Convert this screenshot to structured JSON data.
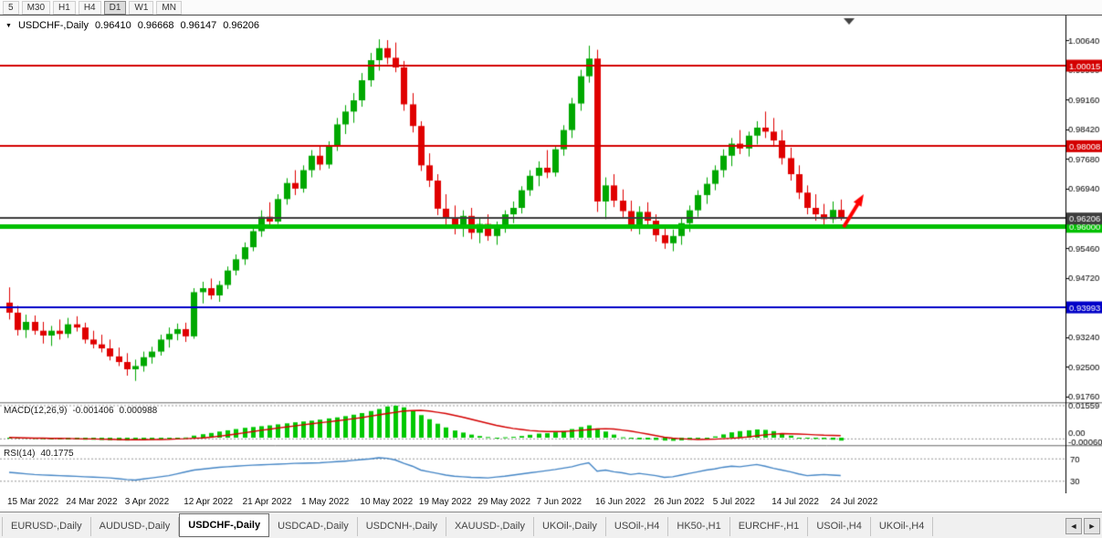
{
  "toolbar": {
    "periods": [
      "5",
      "M30",
      "H1",
      "H4",
      "D1",
      "W1",
      "MN"
    ],
    "active_index": 4
  },
  "icons": {
    "chart_menu": "▼",
    "tabs_scroll_left": "◄",
    "tabs_scroll_right": "►"
  },
  "chart_data": {
    "type": "candlestick",
    "symbol_label": "USDCHF-,Daily",
    "ohlc": {
      "open": "0.96410",
      "high": "0.96668",
      "low": "0.96147",
      "close": "0.96206"
    },
    "bull_color": "#00A800",
    "bear_color": "#E00000",
    "ylim": [
      0.9158,
      1.0125
    ],
    "y_ticks": [
      1.0064,
      0.999,
      0.9916,
      0.9842,
      0.9768,
      0.9694,
      0.9546,
      0.9472,
      0.9324,
      0.925,
      0.9176
    ],
    "x_tick_labels": [
      "15 Mar 2022",
      "24 Mar 2022",
      "3 Apr 2022",
      "12 Apr 2022",
      "21 Apr 2022",
      "1 May 2022",
      "10 May 2022",
      "19 May 2022",
      "29 May 2022",
      "7 Jun 2022",
      "16 Jun 2022",
      "26 Jun 2022",
      "5 Jul 2022",
      "14 Jul 2022",
      "24 Jul 2022"
    ],
    "x_tick_indices": [
      0,
      7,
      14,
      21,
      28,
      35,
      42,
      49,
      56,
      63,
      70,
      77,
      84,
      91,
      98
    ],
    "levels": [
      {
        "price": 1.00015,
        "label": "1.00015",
        "color": "#D40000",
        "line_width": 2
      },
      {
        "price": 0.98008,
        "label": "0.98008",
        "color": "#D40000",
        "line_width": 2
      },
      {
        "price": 0.96,
        "label": "0.96000",
        "color": "#00C000",
        "line_width": 5
      },
      {
        "price": 0.93993,
        "label": "0.93993",
        "color": "#0000C8",
        "line_width": 2
      },
      {
        "price": 0.96206,
        "label": "0.96206",
        "color": "#3C3C3C",
        "line_width": 2
      }
    ],
    "annotations": [
      {
        "type": "arrow",
        "direction": "up-right",
        "color": "#FF0000"
      }
    ],
    "candles": [
      [
        0.941,
        0.9448,
        0.9368,
        0.9385
      ],
      [
        0.9385,
        0.9402,
        0.9328,
        0.9342
      ],
      [
        0.9342,
        0.938,
        0.9322,
        0.9362
      ],
      [
        0.9362,
        0.9378,
        0.933,
        0.934
      ],
      [
        0.934,
        0.9362,
        0.9308,
        0.9328
      ],
      [
        0.9328,
        0.9352,
        0.9302,
        0.934
      ],
      [
        0.934,
        0.9368,
        0.9318,
        0.9332
      ],
      [
        0.9332,
        0.9372,
        0.9322,
        0.9356
      ],
      [
        0.9356,
        0.9376,
        0.9338,
        0.9348
      ],
      [
        0.9348,
        0.936,
        0.9308,
        0.9318
      ],
      [
        0.9318,
        0.934,
        0.9296,
        0.9306
      ],
      [
        0.9306,
        0.933,
        0.9286,
        0.9296
      ],
      [
        0.9296,
        0.9318,
        0.9266,
        0.9276
      ],
      [
        0.9276,
        0.9298,
        0.9252,
        0.9262
      ],
      [
        0.9262,
        0.9284,
        0.9228,
        0.9244
      ],
      [
        0.9244,
        0.9268,
        0.9215,
        0.9252
      ],
      [
        0.9252,
        0.9288,
        0.9238,
        0.9274
      ],
      [
        0.9274,
        0.93,
        0.9258,
        0.9288
      ],
      [
        0.9288,
        0.933,
        0.9278,
        0.9318
      ],
      [
        0.9318,
        0.9348,
        0.9298,
        0.9332
      ],
      [
        0.9332,
        0.9358,
        0.9316,
        0.9344
      ],
      [
        0.9344,
        0.936,
        0.9312,
        0.9326
      ],
      [
        0.9326,
        0.9446,
        0.932,
        0.9436
      ],
      [
        0.9436,
        0.9462,
        0.9408,
        0.9446
      ],
      [
        0.9446,
        0.947,
        0.9418,
        0.9428
      ],
      [
        0.9428,
        0.9464,
        0.9412,
        0.9454
      ],
      [
        0.9454,
        0.95,
        0.9444,
        0.949
      ],
      [
        0.949,
        0.953,
        0.9478,
        0.9518
      ],
      [
        0.9518,
        0.956,
        0.9504,
        0.9548
      ],
      [
        0.9548,
        0.96,
        0.9538,
        0.9588
      ],
      [
        0.9588,
        0.964,
        0.9574,
        0.9624
      ],
      [
        0.9624,
        0.966,
        0.9598,
        0.9612
      ],
      [
        0.9612,
        0.968,
        0.9606,
        0.9668
      ],
      [
        0.9668,
        0.972,
        0.9654,
        0.9708
      ],
      [
        0.9708,
        0.974,
        0.9678,
        0.9694
      ],
      [
        0.9694,
        0.9752,
        0.9684,
        0.974
      ],
      [
        0.974,
        0.979,
        0.9722,
        0.9776
      ],
      [
        0.9776,
        0.9802,
        0.974,
        0.9754
      ],
      [
        0.9754,
        0.9812,
        0.9744,
        0.98
      ],
      [
        0.98,
        0.987,
        0.9788,
        0.9854
      ],
      [
        0.9854,
        0.9902,
        0.983,
        0.9886
      ],
      [
        0.9886,
        0.9932,
        0.9858,
        0.9914
      ],
      [
        0.9914,
        0.9982,
        0.9898,
        0.9964
      ],
      [
        0.9964,
        1.0032,
        0.9948,
        1.0014
      ],
      [
        1.0014,
        1.0066,
        0.9988,
        1.0044
      ],
      [
        1.0044,
        1.0064,
        1.0004,
        1.002
      ],
      [
        1.002,
        1.0058,
        0.9984,
        0.9996
      ],
      [
        0.9996,
        1.0012,
        0.9888,
        0.9904
      ],
      [
        0.9904,
        0.9932,
        0.9834,
        0.985
      ],
      [
        0.985,
        0.9862,
        0.9738,
        0.9752
      ],
      [
        0.9752,
        0.9782,
        0.9698,
        0.9714
      ],
      [
        0.9714,
        0.973,
        0.9628,
        0.9644
      ],
      [
        0.9644,
        0.968,
        0.9604,
        0.962
      ],
      [
        0.962,
        0.9652,
        0.958,
        0.96
      ],
      [
        0.96,
        0.964,
        0.9574,
        0.9626
      ],
      [
        0.9626,
        0.9646,
        0.9568,
        0.9584
      ],
      [
        0.9584,
        0.9622,
        0.9558,
        0.9606
      ],
      [
        0.9606,
        0.963,
        0.9564,
        0.9576
      ],
      [
        0.9576,
        0.9612,
        0.9554,
        0.9598
      ],
      [
        0.9598,
        0.964,
        0.9584,
        0.963
      ],
      [
        0.963,
        0.9662,
        0.9608,
        0.9646
      ],
      [
        0.9646,
        0.97,
        0.9632,
        0.969
      ],
      [
        0.969,
        0.974,
        0.9676,
        0.9726
      ],
      [
        0.9726,
        0.9762,
        0.97,
        0.9746
      ],
      [
        0.9746,
        0.979,
        0.972,
        0.9734
      ],
      [
        0.9734,
        0.9802,
        0.9724,
        0.9792
      ],
      [
        0.9792,
        0.9852,
        0.9776,
        0.984
      ],
      [
        0.984,
        0.992,
        0.982,
        0.9906
      ],
      [
        0.9906,
        0.999,
        0.9888,
        0.9974
      ],
      [
        0.9974,
        1.005,
        0.9958,
        1.0018
      ],
      [
        1.0018,
        1.004,
        0.9636,
        0.9662
      ],
      [
        0.9662,
        0.9722,
        0.9618,
        0.9702
      ],
      [
        0.9702,
        0.973,
        0.9648,
        0.9664
      ],
      [
        0.9664,
        0.9692,
        0.962,
        0.9638
      ],
      [
        0.9638,
        0.9664,
        0.9588,
        0.9604
      ],
      [
        0.9604,
        0.965,
        0.958,
        0.9636
      ],
      [
        0.9636,
        0.966,
        0.9598,
        0.9614
      ],
      [
        0.9614,
        0.963,
        0.9562,
        0.9578
      ],
      [
        0.9578,
        0.96,
        0.9544,
        0.9558
      ],
      [
        0.9558,
        0.9592,
        0.9538,
        0.9576
      ],
      [
        0.9576,
        0.962,
        0.9554,
        0.9608
      ],
      [
        0.9608,
        0.9652,
        0.9586,
        0.964
      ],
      [
        0.964,
        0.969,
        0.9624,
        0.9678
      ],
      [
        0.9678,
        0.9722,
        0.9656,
        0.9706
      ],
      [
        0.9706,
        0.9752,
        0.969,
        0.974
      ],
      [
        0.974,
        0.9792,
        0.9722,
        0.9776
      ],
      [
        0.9776,
        0.982,
        0.975,
        0.9806
      ],
      [
        0.9806,
        0.984,
        0.978,
        0.9794
      ],
      [
        0.9794,
        0.9836,
        0.9774,
        0.9826
      ],
      [
        0.9826,
        0.9862,
        0.9804,
        0.9846
      ],
      [
        0.9846,
        0.9886,
        0.982,
        0.9836
      ],
      [
        0.9836,
        0.987,
        0.9798,
        0.9814
      ],
      [
        0.9814,
        0.984,
        0.9754,
        0.977
      ],
      [
        0.977,
        0.9796,
        0.9714,
        0.973
      ],
      [
        0.973,
        0.9752,
        0.9668,
        0.9684
      ],
      [
        0.9684,
        0.9702,
        0.963,
        0.9646
      ],
      [
        0.9646,
        0.968,
        0.9614,
        0.963
      ],
      [
        0.963,
        0.9656,
        0.9598,
        0.9618
      ],
      [
        0.9618,
        0.9662,
        0.9608,
        0.9641
      ],
      [
        0.9641,
        0.96668,
        0.96147,
        0.96206
      ]
    ]
  },
  "indicators": {
    "macd": {
      "name": "MACD(12,26,9)",
      "value_main": "-0.001406",
      "value_signal": "0.000988",
      "axis_labels": [
        "0.01559",
        "0.00",
        "-0.00060"
      ],
      "level_values": [
        0.01559,
        -0.0006
      ],
      "histogram_color": "#00C800",
      "signal_color": "#D40000",
      "histogram": [
        -0.0003,
        -0.0004,
        -0.0005,
        -0.0006,
        -0.0007,
        -0.0008,
        -0.0008,
        -0.0009,
        -0.0009,
        -0.001,
        -0.001,
        -0.0011,
        -0.0012,
        -0.0013,
        -0.0014,
        -0.0013,
        -0.0012,
        -0.001,
        -0.0008,
        -0.0006,
        -0.0004,
        0.0001,
        0.001,
        0.0017,
        0.0023,
        0.003,
        0.0036,
        0.0042,
        0.0048,
        0.0052,
        0.0056,
        0.006,
        0.0065,
        0.007,
        0.0075,
        0.0079,
        0.0083,
        0.0088,
        0.0094,
        0.0099,
        0.0105,
        0.0112,
        0.012,
        0.013,
        0.014,
        0.0152,
        0.0156,
        0.0148,
        0.0132,
        0.011,
        0.009,
        0.0068,
        0.005,
        0.0035,
        0.0025,
        0.0015,
        0.0008,
        0.0003,
        0.0,
        0.0002,
        0.0004,
        0.0008,
        0.0014,
        0.002,
        0.0022,
        0.0026,
        0.0032,
        0.0042,
        0.0052,
        0.006,
        0.0045,
        0.003,
        0.0015,
        0.0002,
        -0.0005,
        -0.0008,
        -0.0009,
        -0.0011,
        -0.0014,
        -0.0015,
        -0.0013,
        -0.001,
        -0.0006,
        -0.0002,
        0.0006,
        0.0016,
        0.0026,
        0.0032,
        0.0036,
        0.004,
        0.0038,
        0.0032,
        0.0022,
        0.001,
        -0.0001,
        -0.0004,
        -0.0006,
        -0.0007,
        -0.001,
        -0.001406
      ],
      "signal": [
        0.0001,
        0.0,
        -0.0001,
        -0.0002,
        -0.0002,
        -0.0003,
        -0.0003,
        -0.0004,
        -0.0005,
        -0.0006,
        -0.0006,
        -0.0007,
        -0.0008,
        -0.0009,
        -0.001,
        -0.001,
        -0.001,
        -0.0009,
        -0.0009,
        -0.0008,
        -0.0006,
        -0.0005,
        -0.0003,
        -0.0001,
        0.0002,
        0.0007,
        0.0012,
        0.0018,
        0.0024,
        0.003,
        0.0036,
        0.0041,
        0.0047,
        0.0052,
        0.0057,
        0.0063,
        0.0068,
        0.0073,
        0.0077,
        0.0082,
        0.0087,
        0.0093,
        0.0098,
        0.0105,
        0.0111,
        0.0118,
        0.0124,
        0.013,
        0.0132,
        0.0133,
        0.013,
        0.0124,
        0.0118,
        0.0109,
        0.01,
        0.009,
        0.008,
        0.007,
        0.006,
        0.0052,
        0.0045,
        0.004,
        0.0035,
        0.0032,
        0.003,
        0.003,
        0.003,
        0.0033,
        0.0036,
        0.0039,
        0.0042,
        0.0044,
        0.0042,
        0.0037,
        0.0032,
        0.0025,
        0.0018,
        0.001,
        0.0002,
        -0.0002,
        -0.0005,
        -0.0007,
        -0.0009,
        -0.0008,
        -0.0007,
        -0.0005,
        -0.0003,
        0.0,
        0.0004,
        0.0009,
        0.0014,
        0.0017,
        0.002,
        0.0019,
        0.0018,
        0.0016,
        0.0014,
        0.0012,
        0.0011,
        0.000988
      ]
    },
    "rsi": {
      "name": "RSI(14)",
      "value": "40.1775",
      "levels": [
        70,
        30
      ],
      "line_color": "#4586C6",
      "values": [
        46,
        44.7,
        43.3,
        42,
        41.3,
        40.7,
        40,
        39.3,
        38.7,
        38,
        37.3,
        36.7,
        36,
        34.5,
        33,
        32,
        34,
        36,
        38,
        40,
        43.3,
        46.7,
        50,
        51.7,
        53.3,
        55,
        56,
        57,
        58,
        58.7,
        59.3,
        60,
        60.7,
        61.3,
        62,
        62.3,
        62.7,
        63,
        64,
        65,
        66,
        67.3,
        68.7,
        70,
        72,
        71,
        68,
        62,
        57,
        50,
        47,
        44,
        41,
        39,
        38,
        37,
        36.5,
        36,
        37.5,
        39,
        41,
        43,
        45,
        47,
        49,
        51,
        53.5,
        56,
        60,
        63,
        48,
        50,
        47,
        45,
        42,
        44,
        42,
        40,
        37,
        38,
        41,
        44,
        47,
        50,
        52,
        55,
        57,
        56,
        58,
        60,
        57,
        53,
        50,
        47,
        43,
        40,
        41,
        42,
        41,
        40.1775
      ]
    }
  },
  "tabs": {
    "items": [
      "EURUSD-,Daily",
      "AUDUSD-,Daily",
      "USDCHF-,Daily",
      "USDCAD-,Daily",
      "USDCNH-,Daily",
      "XAUUSD-,Daily",
      "UKOil-,Daily",
      "USOil-,H4",
      "HK50-,H1",
      "EURCHF-,H1",
      "USOil-,H4",
      "UKOil-,H4"
    ],
    "active_index": 2
  }
}
